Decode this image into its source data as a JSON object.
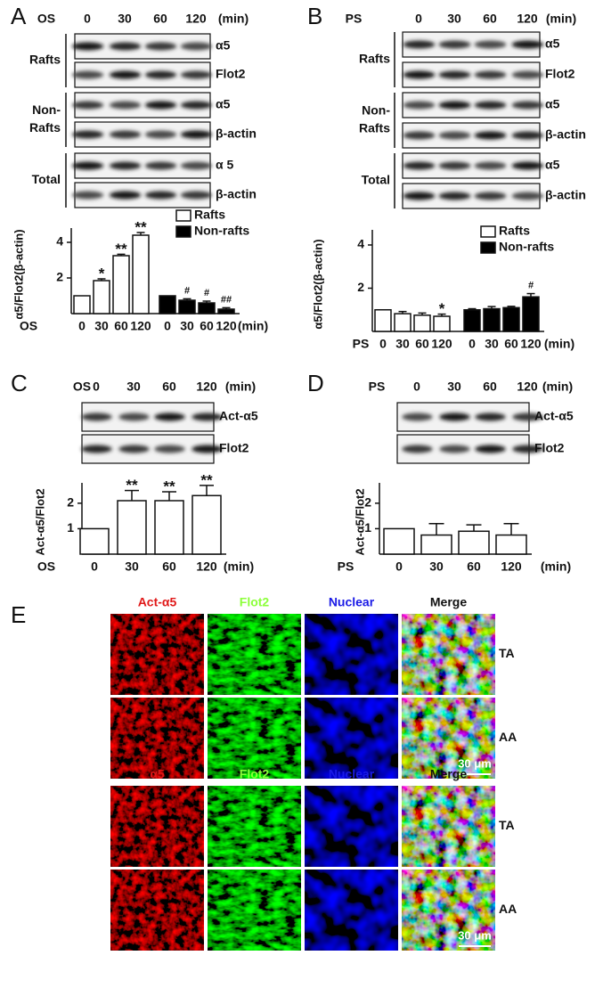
{
  "panel_letters": [
    "A",
    "B",
    "C",
    "D",
    "E"
  ],
  "blots": [
    {
      "treatment": "OS",
      "lanes": [
        "0",
        "30",
        "60",
        "120"
      ],
      "unit": "(min)",
      "rows": [
        "α5",
        "Flot2",
        "α5",
        "β-actin",
        "α 5",
        "β-actin"
      ],
      "groups": [
        [
          "Rafts"
        ],
        [
          "Non-",
          "Rafts"
        ],
        [
          "Total"
        ]
      ]
    },
    {
      "treatment": "PS",
      "lanes": [
        "0",
        "30",
        "60",
        "120"
      ],
      "unit": "(min)",
      "rows": [
        "α5",
        "Flot2",
        "α5",
        "β-actin",
        "α5",
        "β-actin"
      ],
      "groups": [
        [
          "Rafts"
        ],
        [
          "Non-",
          "Rafts"
        ],
        [
          "Total"
        ]
      ]
    },
    {
      "treatment": "OS",
      "lanes": [
        "0",
        "30",
        "60",
        "120"
      ],
      "unit": "(min)",
      "rows": [
        "Act-α5",
        "Flot2"
      ]
    },
    {
      "treatment": "PS",
      "lanes": [
        "0",
        "30",
        "60",
        "120"
      ],
      "unit": "(min)",
      "rows": [
        "Act-α5",
        "Flot2"
      ]
    }
  ],
  "chart_data": [
    {
      "type": "bar",
      "ylabel": "α5/Flot2(β-actin)",
      "xlabel": "OS",
      "xunit": "(min)",
      "categories": [
        "0",
        "30",
        "60",
        "120",
        "0",
        "30",
        "60",
        "120"
      ],
      "series": [
        {
          "name": "Rafts",
          "color": "#ffffff",
          "values": [
            1,
            1.85,
            3.25,
            4.4,
            null,
            null,
            null,
            null
          ],
          "errors": [
            null,
            0.1,
            0.08,
            0.15,
            null,
            null,
            null,
            null
          ],
          "annotations": [
            null,
            "*",
            "**",
            "**",
            null,
            null,
            null,
            null
          ]
        },
        {
          "name": "Non-rafts",
          "color": "#000000",
          "values": [
            null,
            null,
            null,
            null,
            1,
            0.75,
            0.6,
            0.25
          ],
          "errors": [
            null,
            null,
            null,
            null,
            null,
            0.08,
            0.1,
            0.08
          ],
          "annotations": [
            null,
            null,
            null,
            null,
            null,
            "#",
            "#",
            "##"
          ]
        }
      ],
      "ylim": [
        0,
        4.8
      ],
      "yticks": [
        2,
        4
      ],
      "legend": "upper right"
    },
    {
      "type": "bar",
      "ylabel": "α5/Flot2(β-actin)",
      "xlabel": "PS",
      "xunit": "(min)",
      "categories": [
        "0",
        "30",
        "60",
        "120",
        "0",
        "30",
        "60",
        "120"
      ],
      "series": [
        {
          "name": "Rafts",
          "color": "#ffffff",
          "values": [
            1,
            0.82,
            0.75,
            0.7,
            null,
            null,
            null,
            null
          ],
          "errors": [
            null,
            0.1,
            0.1,
            0.1,
            null,
            null,
            null,
            null
          ],
          "annotations": [
            null,
            null,
            null,
            "*",
            null,
            null,
            null,
            null
          ]
        },
        {
          "name": "Non-rafts",
          "color": "#000000",
          "values": [
            null,
            null,
            null,
            null,
            1,
            1.05,
            1.1,
            1.6
          ],
          "errors": [
            null,
            null,
            null,
            null,
            0.05,
            0.1,
            0.06,
            0.15
          ],
          "annotations": [
            null,
            null,
            null,
            null,
            null,
            null,
            null,
            "#"
          ]
        }
      ],
      "ylim": [
        0,
        4.7
      ],
      "yticks": [
        2,
        4
      ],
      "legend": "upper right"
    },
    {
      "type": "bar",
      "ylabel": "Act-α5/Flot2",
      "xlabel": "OS",
      "xunit": "(min)",
      "categories": [
        "0",
        "30",
        "60",
        "120"
      ],
      "series": [
        {
          "name": null,
          "color": "#ffffff",
          "values": [
            1,
            2.1,
            2.1,
            2.3
          ],
          "errors": [
            null,
            0.4,
            0.35,
            0.4
          ],
          "annotations": [
            null,
            "**",
            "**",
            "**"
          ]
        }
      ],
      "ylim": [
        0,
        2.8
      ],
      "yticks": [
        1,
        2
      ]
    },
    {
      "type": "bar",
      "ylabel": "Act-α5/Flot2",
      "xlabel": "PS",
      "xunit": "(min)",
      "categories": [
        "0",
        "30",
        "60",
        "120"
      ],
      "series": [
        {
          "name": null,
          "color": "#ffffff",
          "values": [
            1,
            0.75,
            0.9,
            0.75
          ],
          "errors": [
            null,
            0.45,
            0.25,
            0.45
          ],
          "annotations": [
            null,
            null,
            null,
            null
          ]
        }
      ],
      "ylim": [
        0,
        2.8
      ],
      "yticks": [
        1,
        2
      ]
    }
  ],
  "micrographs": [
    {
      "columns": [
        "Act-α5",
        "Flot2",
        "Nuclear",
        "Merge"
      ],
      "rows": [
        "TA",
        "AA"
      ],
      "scale_bar": "30 μm"
    },
    {
      "columns": [
        "α5",
        "Flot2",
        "Nuclear",
        "Merge"
      ],
      "rows": [
        "TA",
        "AA"
      ],
      "scale_bar": "30 μm"
    }
  ]
}
